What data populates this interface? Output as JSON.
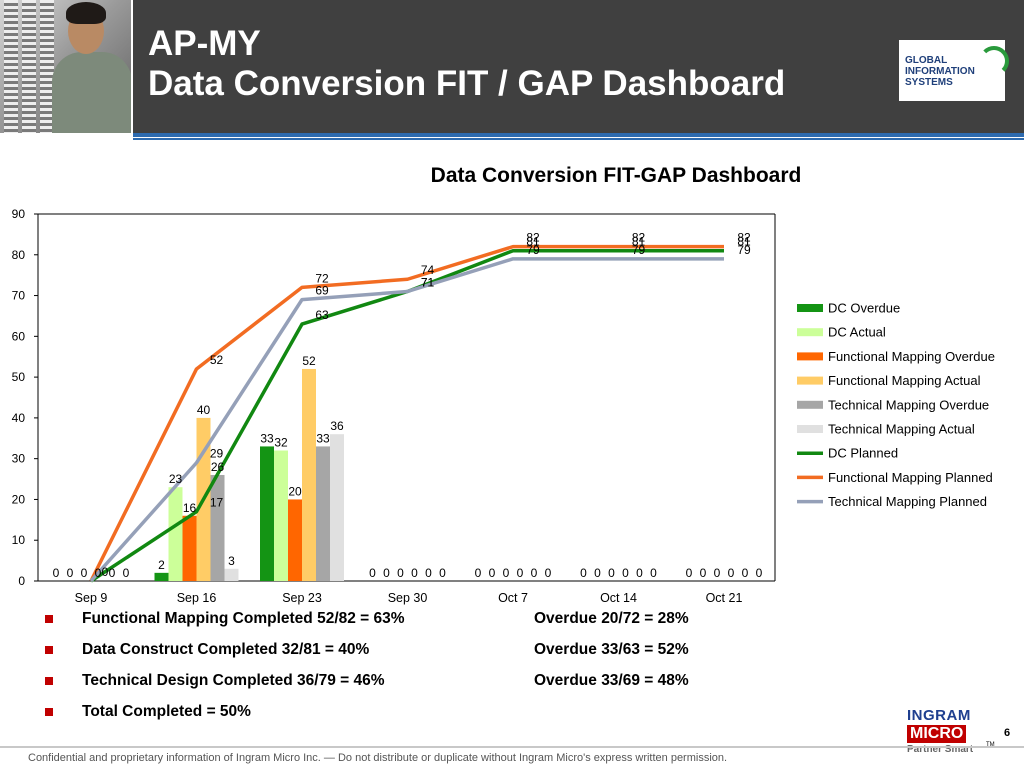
{
  "header": {
    "title_line1": "AP-MY",
    "title_line2": "Data Conversion FIT / GAP Dashboard",
    "logo": {
      "line1": "GLOBAL",
      "line2": "INFORMATION",
      "line3": "SYSTEMS"
    }
  },
  "chart_data": {
    "type": "bar",
    "title": "Data Conversion FIT-GAP Dashboard",
    "xlabel": "",
    "ylabel": "",
    "ylim": [
      0,
      90
    ],
    "yticks": [
      0,
      10,
      20,
      30,
      40,
      50,
      60,
      70,
      80,
      90
    ],
    "categories": [
      "Sep 9",
      "Sep 16",
      "Sep 23",
      "Sep 30",
      "Oct 7",
      "Oct 14",
      "Oct 21"
    ],
    "legend_position": "right",
    "grid": false,
    "bar_series": [
      {
        "name": "DC Overdue",
        "color": "#149414",
        "values": [
          0,
          2,
          33,
          0,
          0,
          0,
          0
        ]
      },
      {
        "name": "DC Actual",
        "color": "#ccff99",
        "values": [
          0,
          23,
          32,
          0,
          0,
          0,
          0
        ]
      },
      {
        "name": "Functional Mapping Overdue",
        "color": "#ff6600",
        "values": [
          0,
          16,
          20,
          0,
          0,
          0,
          0
        ]
      },
      {
        "name": "Functional Mapping Actual",
        "color": "#ffcc66",
        "values": [
          0,
          40,
          52,
          0,
          0,
          0,
          0
        ]
      },
      {
        "name": "Technical Mapping Overdue",
        "color": "#a6a6a6",
        "values": [
          0,
          26,
          33,
          0,
          0,
          0,
          0
        ]
      },
      {
        "name": "Technical Mapping Actual",
        "color": "#e0e0e0",
        "values": [
          0,
          3,
          36,
          0,
          0,
          0,
          0
        ]
      }
    ],
    "line_series": [
      {
        "name": "DC Planned",
        "color": "#118811",
        "values": [
          0,
          17,
          63,
          71,
          81,
          81,
          81
        ],
        "labels": [
          "0",
          "17",
          "63",
          "71",
          "81",
          "81",
          "81"
        ]
      },
      {
        "name": "Functional Mapping Planned",
        "color": "#f26c22",
        "values": [
          0,
          52,
          72,
          74,
          82,
          82,
          82
        ],
        "labels": [
          "0",
          "52",
          "72",
          "74",
          "82",
          "82",
          "82"
        ]
      },
      {
        "name": "Technical Mapping Planned",
        "color": "#95a0b8",
        "values": [
          0,
          29,
          69,
          71,
          79,
          79,
          79
        ],
        "labels": [
          "",
          "29",
          "69",
          "71",
          "79",
          "79",
          "79"
        ]
      }
    ],
    "bar_value_labels": [
      [
        "0",
        "0",
        "0",
        "0",
        "0",
        "0"
      ],
      [
        "2",
        "23",
        "16",
        "40",
        "26",
        "3"
      ],
      [
        "33",
        "32",
        "20",
        "52",
        "33",
        "36"
      ],
      [
        "0",
        "0",
        "0",
        "0",
        "0",
        "0"
      ],
      [
        "0",
        "0",
        "0",
        "0",
        "0",
        "0"
      ],
      [
        "0",
        "0",
        "0",
        "0",
        "0",
        "0"
      ],
      [
        "0",
        "0",
        "0",
        "0",
        "0",
        "0"
      ]
    ]
  },
  "summary": [
    {
      "text": "Functional Mapping Completed  52/82 =  63%",
      "overdue": "Overdue 20/72 = 28%"
    },
    {
      "text": "Data Construct Completed  32/81 = 40%",
      "overdue": "Overdue 33/63 =  52%"
    },
    {
      "text": "Technical Design Completed  36/79 = 46%",
      "overdue": "Overdue 33/69 = 48%"
    },
    {
      "text": "Total Completed  =  50%",
      "overdue": ""
    }
  ],
  "brand": {
    "line1": "INGRAM",
    "line2": "MICRO",
    "tm": "TM",
    "tagline": "Partner Smart"
  },
  "page_number": "6",
  "footer": "Confidential and proprietary information of Ingram Micro Inc. — Do not distribute or duplicate without Ingram Micro's express written permission.",
  "colors": {
    "header_bg": "#404040",
    "rule": "#2d6bb0",
    "bullet": "#c00000"
  }
}
